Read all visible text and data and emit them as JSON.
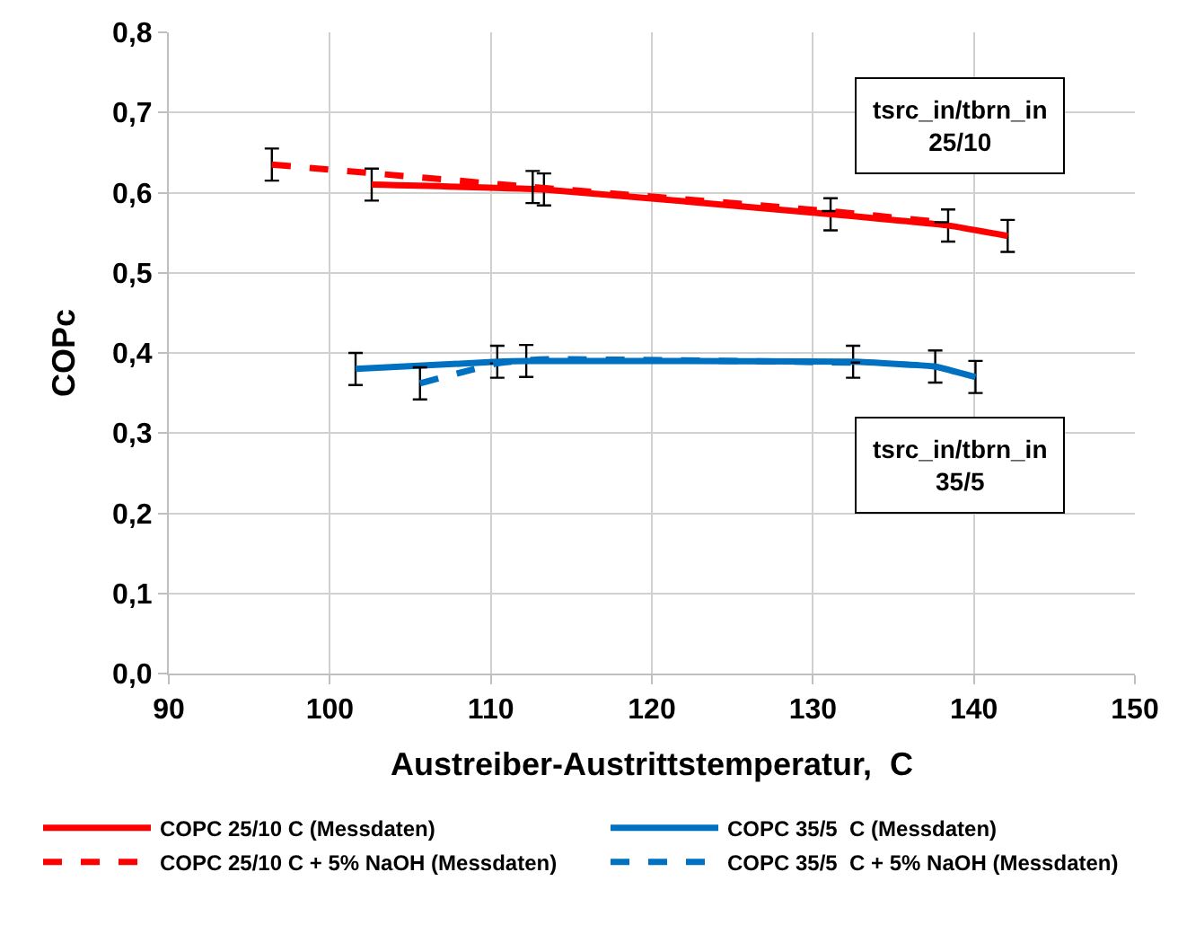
{
  "chart_data": {
    "type": "line",
    "xlabel": "Austreiber-Austrittstemperatur,  C",
    "ylabel": "COPc",
    "xlim": [
      90,
      150
    ],
    "xticks": [
      90,
      100,
      110,
      120,
      130,
      140,
      150
    ],
    "ylim": [
      0,
      0.8
    ],
    "yticks": [
      {
        "value": 0,
        "label": "0,0"
      },
      {
        "value": 0.1,
        "label": "0,1"
      },
      {
        "value": 0.2,
        "label": "0,2"
      },
      {
        "value": 0.3,
        "label": "0,3"
      },
      {
        "value": 0.4,
        "label": "0,4"
      },
      {
        "value": 0.5,
        "label": "0,5"
      },
      {
        "value": 0.6,
        "label": "0,6"
      },
      {
        "value": 0.7,
        "label": "0,7"
      },
      {
        "value": 0.8,
        "label": "0,8"
      }
    ],
    "grid": true,
    "legend": "bottom",
    "marker": "none",
    "series": [
      {
        "name": "COPC 25/10 C (Messdaten)",
        "color": "#ff0000",
        "line_style": "solid",
        "x": [
          102.6,
          113.3,
          131.1,
          138.4,
          142.1
        ],
        "values": [
          0.61,
          0.604,
          0.573,
          0.559,
          0.546
        ],
        "errors": [
          0.02,
          0.02,
          0.02,
          0.02,
          0.02
        ]
      },
      {
        "name": "COPC 35/5  C (Messdaten)",
        "color": "#0070c0",
        "line_style": "solid",
        "x": [
          101.6,
          110.4,
          112.2,
          132.5,
          137.6,
          140.1
        ],
        "values": [
          0.38,
          0.389,
          0.39,
          0.389,
          0.383,
          0.37
        ],
        "errors": [
          0.02,
          0.02,
          0.02,
          0.02,
          0.02,
          0.02
        ]
      },
      {
        "name": "COPC 25/10 C + 5% NaOH (Messdaten)",
        "color": "#ff0000",
        "line_style": "dashed",
        "x": [
          96.4,
          112.6,
          131.0,
          138.0
        ],
        "values": [
          0.635,
          0.607,
          0.577,
          0.563
        ],
        "errors": [
          0.02,
          0.02,
          null,
          null
        ]
      },
      {
        "name": "COPC 35/5  C + 5% NaOH (Messdaten)",
        "color": "#0070c0",
        "line_style": "dashed",
        "x": [
          105.6,
          110.4,
          113.0,
          132.5
        ],
        "values": [
          0.362,
          0.387,
          0.392,
          0.388
        ],
        "errors": [
          0.02,
          null,
          null,
          null
        ]
      }
    ],
    "annotations": [
      "tsrc_in/tbrn_in\n25/10",
      "tsrc_in/tbrn_in\n35/5"
    ]
  }
}
